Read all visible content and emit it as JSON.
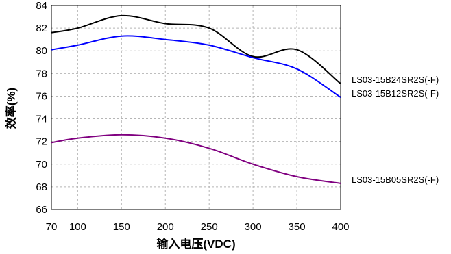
{
  "chart_data": {
    "type": "line",
    "title": "",
    "xlabel": "输入电压(VDC)",
    "ylabel": "效率(%)",
    "x": [
      70,
      100,
      150,
      200,
      250,
      300,
      350,
      400
    ],
    "xlim": [
      70,
      400
    ],
    "ylim": [
      66,
      84
    ],
    "xticks": [
      "70",
      "100",
      "150",
      "200",
      "250",
      "300",
      "350",
      "400"
    ],
    "yticks": [
      "66",
      "68",
      "70",
      "72",
      "74",
      "76",
      "78",
      "80",
      "82",
      "84"
    ],
    "grid": true,
    "legend": "none",
    "series": [
      {
        "name": "LS03-15B24SR2S(-F)",
        "color": "#000000",
        "points": [
          [
            70,
            81.6
          ],
          [
            100,
            82.0
          ],
          [
            150,
            83.1
          ],
          [
            200,
            82.4
          ],
          [
            250,
            82.0
          ],
          [
            300,
            79.5
          ],
          [
            350,
            80.1
          ],
          [
            400,
            77.1
          ]
        ]
      },
      {
        "name": "LS03-15B12SR2S(-F)",
        "color": "#0000ff",
        "points": [
          [
            70,
            80.1
          ],
          [
            100,
            80.5
          ],
          [
            150,
            81.3
          ],
          [
            200,
            81.0
          ],
          [
            250,
            80.5
          ],
          [
            300,
            79.4
          ],
          [
            350,
            78.4
          ],
          [
            400,
            75.9
          ]
        ]
      },
      {
        "name": "LS03-15B05SR2S(-F)",
        "color": "#800080",
        "points": [
          [
            70,
            71.9
          ],
          [
            100,
            72.3
          ],
          [
            150,
            72.6
          ],
          [
            200,
            72.3
          ],
          [
            250,
            71.4
          ],
          [
            300,
            70.0
          ],
          [
            350,
            68.9
          ],
          [
            400,
            68.3
          ]
        ]
      }
    ]
  }
}
